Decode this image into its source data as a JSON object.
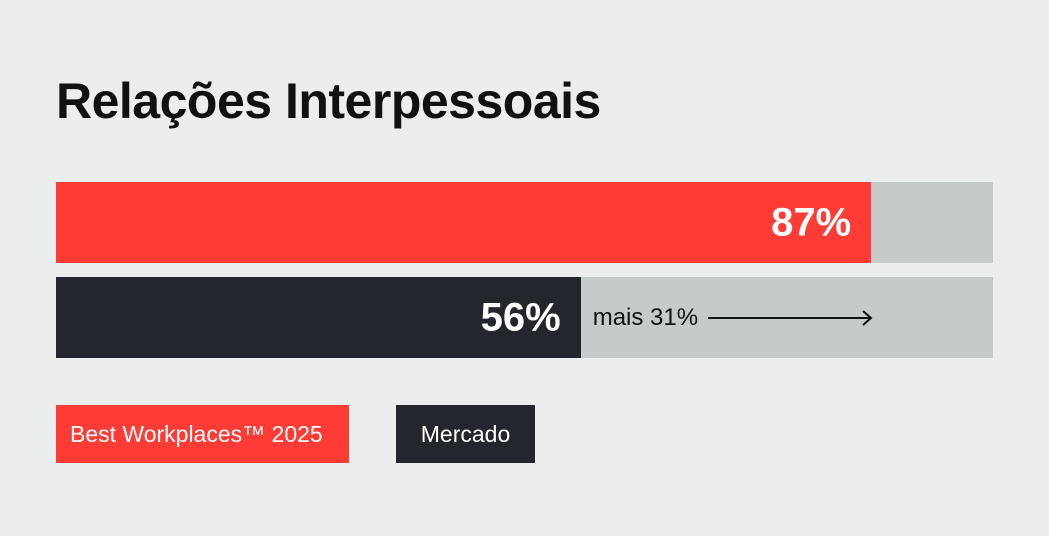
{
  "title": "Relações Interpessoais",
  "colors": {
    "best": "#ff3b36",
    "market": "#23262d",
    "track": "#c4cbc9",
    "background": "#eceeed"
  },
  "chart_data": {
    "type": "bar",
    "orientation": "horizontal",
    "title": "Relações Interpessoais",
    "xlim": [
      0,
      100
    ],
    "series": [
      {
        "name": "Best Workplaces™ 2025",
        "value": 87,
        "label": "87%"
      },
      {
        "name": "Mercado",
        "value": 56,
        "label": "56%"
      }
    ],
    "annotation": "mais 31%",
    "legend": [
      "Best Workplaces™ 2025",
      "Mercado"
    ]
  }
}
